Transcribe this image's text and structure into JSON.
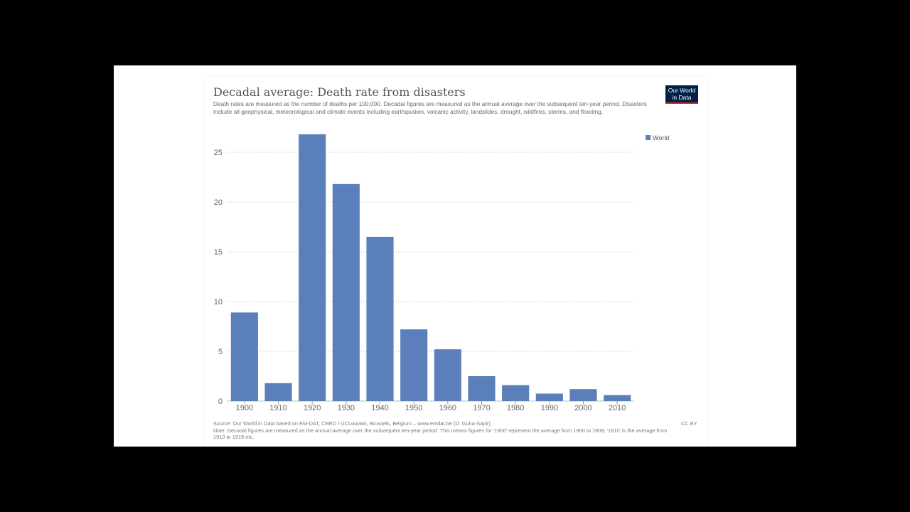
{
  "title": "Decadal average: Death rate from disasters",
  "subtitle": "Death rates are measured as the number of deaths per 100,000. Decadal figures are measured as the annual average over the subsequent ten-year period. Disasters include all geophysical, meteorological and climate events including earthquakes, volcanic activity, landslides, drought, wildfires, storms, and flooding.",
  "logo": "Our World in Data",
  "source": "Source: Our World in Data based on EM-DAT, CRED / UCLouvain, Brussels, Belgium – www.emdat.be (D. Guha-Sapir)",
  "note": "Note: Decadal figures are measured as the annual average over the subsequent ten-year period. This means figures for '1900' represent the average from 1900 to 1909; '1910' is the average from 1910 to 1919 etc.",
  "license": "CC BY",
  "colors": {
    "bar": "#5b7fbb",
    "grid": "#dddddd",
    "title": "#555555"
  },
  "chart_data": {
    "type": "bar",
    "title": "Decadal average: Death rate from disasters",
    "xlabel": "",
    "ylabel": "",
    "categories": [
      "1900",
      "1910",
      "1920",
      "1930",
      "1940",
      "1950",
      "1960",
      "1970",
      "1980",
      "1990",
      "2000",
      "2010"
    ],
    "series": [
      {
        "name": "World",
        "values": [
          8.9,
          1.8,
          26.8,
          21.8,
          16.5,
          7.2,
          5.2,
          2.5,
          1.6,
          0.75,
          1.2,
          0.6
        ]
      }
    ],
    "yticks": [
      0,
      5,
      10,
      15,
      20,
      25
    ],
    "ylim": [
      0,
      28
    ],
    "grid": true,
    "legend": "top-right"
  }
}
